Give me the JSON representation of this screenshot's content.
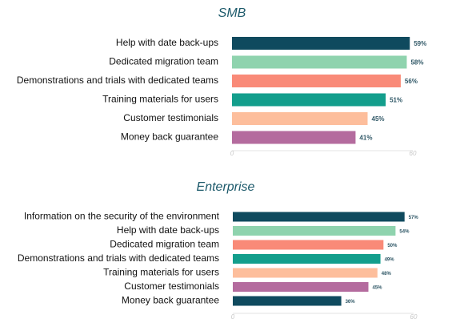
{
  "chart_data": [
    {
      "type": "bar",
      "orientation": "horizontal",
      "title": "SMB",
      "categories": [
        "Help with date back-ups",
        "Dedicated migration team",
        "Demonstrations and trials with dedicated teams",
        "Training materials for users",
        "Customer testimonials",
        "Money back guarantee"
      ],
      "values": [
        59,
        58,
        56,
        51,
        45,
        41
      ],
      "value_labels": [
        "59%",
        "58%",
        "56%",
        "51%",
        "45%",
        "41%"
      ],
      "colors": [
        "#0f4a5e",
        "#8fd3ae",
        "#f98a78",
        "#139e8c",
        "#fdbe9c",
        "#b46b9e"
      ],
      "xlim": [
        0,
        60
      ],
      "xticks": [
        "0",
        "60"
      ],
      "grid": false,
      "legend": "none"
    },
    {
      "type": "bar",
      "orientation": "horizontal",
      "title": "Enterprise",
      "categories": [
        "Information on the security of the environment",
        "Help with date back-ups",
        "Dedicated migration team",
        "Demonstrations and trials with dedicated teams",
        "Training materials for users",
        "Customer testimonials",
        "Money back guarantee"
      ],
      "values": [
        57,
        54,
        50,
        49,
        48,
        45,
        36
      ],
      "value_labels": [
        "57%",
        "54%",
        "50%",
        "49%",
        "48%",
        "45%",
        "36%"
      ],
      "colors": [
        "#0f4a5e",
        "#8fd3ae",
        "#f98a78",
        "#139e8c",
        "#fdbe9c",
        "#b46b9e",
        "#0f4a5e"
      ],
      "xlim": [
        0,
        60
      ],
      "xticks": [
        "0",
        "60"
      ],
      "grid": false,
      "legend": "none"
    }
  ]
}
